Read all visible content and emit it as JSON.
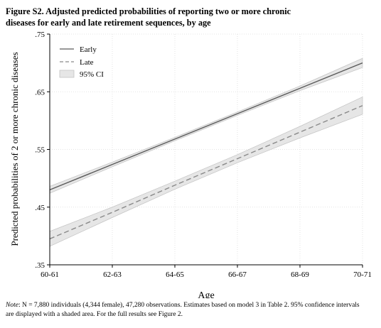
{
  "figure": {
    "title": "Figure S2. Adjusted predicted probabilities of reporting two or more chronic diseases for early and late retirement sequences, by age",
    "note_label": "Note",
    "note_text": ": N = 7,880 individuals (4,344 female), 47,280 observations. Estimates based on model 3 in Table 2. 95% confidence intervals are displayed with a shaded area. For the full results see Figure 2."
  },
  "chart_data": {
    "type": "line",
    "title": "",
    "xlabel": "Age",
    "ylabel": "Predicted probabilities of 2 or more chronic diseases",
    "categories": [
      "60-61",
      "62-63",
      "64-65",
      "66-67",
      "68-69",
      "70-71"
    ],
    "y_ticks": [
      0.35,
      0.45,
      0.55,
      0.65,
      0.75
    ],
    "y_tick_labels": [
      ".35",
      ".45",
      ".55",
      ".65",
      ".75"
    ],
    "ylim": [
      0.35,
      0.75
    ],
    "grid": true,
    "legend_position": "top-left",
    "series": [
      {
        "name": "Early",
        "style": "solid",
        "color": "#5a5a5a",
        "values": [
          0.48,
          0.524,
          0.568,
          0.612,
          0.656,
          0.7
        ],
        "ci_lower": [
          0.474,
          0.52,
          0.565,
          0.609,
          0.652,
          0.692
        ],
        "ci_upper": [
          0.486,
          0.528,
          0.571,
          0.615,
          0.66,
          0.708
        ]
      },
      {
        "name": "Late",
        "style": "dashed",
        "color": "#8a8a8a",
        "values": [
          0.395,
          0.441,
          0.488,
          0.534,
          0.58,
          0.626
        ],
        "ci_lower": [
          0.382,
          0.432,
          0.481,
          0.527,
          0.57,
          0.611
        ],
        "ci_upper": [
          0.408,
          0.45,
          0.495,
          0.541,
          0.59,
          0.641
        ]
      }
    ],
    "legend": [
      "Early",
      "Late",
      "95% CI"
    ],
    "ci_fill_color": "#e6e6e6",
    "ci_edge_color": "#c4c4c4"
  }
}
